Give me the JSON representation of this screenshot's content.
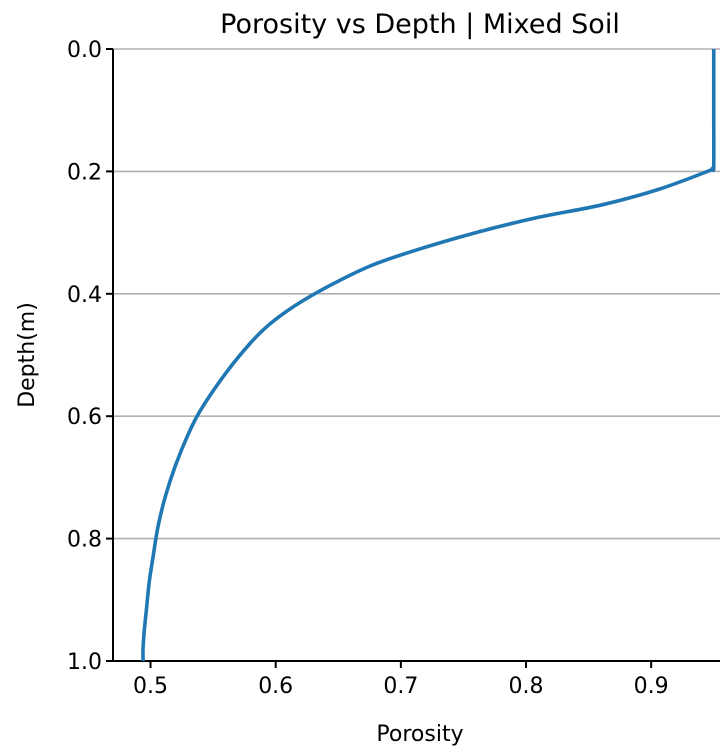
{
  "chart_data": {
    "type": "line",
    "title": "Porosity vs Depth | Mixed Soil",
    "xlabel": "Porosity",
    "ylabel": "Depth(m)",
    "xlim": [
      0.47,
      0.955
    ],
    "ylim": [
      1.0,
      0.0
    ],
    "y_inverted": true,
    "xticks": [
      0.5,
      0.6,
      0.7,
      0.8,
      0.9
    ],
    "xtick_labels": [
      "0.5",
      "0.6",
      "0.7",
      "0.8",
      "0.9"
    ],
    "yticks": [
      0.0,
      0.2,
      0.4,
      0.6,
      0.8,
      1.0
    ],
    "ytick_labels": [
      "0.0",
      "0.2",
      "0.4",
      "0.6",
      "0.8",
      "1.0"
    ],
    "grid": "horizontal",
    "series_color": "#1f77b4",
    "series": [
      {
        "x": [
          0.95,
          0.95,
          0.95,
          0.949,
          0.945,
          0.905,
          0.86,
          0.81,
          0.76,
          0.71,
          0.675,
          0.64,
          0.615,
          0.595,
          0.58,
          0.56,
          0.54,
          0.53,
          0.52,
          0.512,
          0.506,
          0.502,
          0.499,
          0.497,
          0.495,
          0.494,
          0.494
        ],
        "y": [
          0.0,
          0.1,
          0.19,
          0.195,
          0.2,
          0.23,
          0.255,
          0.275,
          0.3,
          0.33,
          0.355,
          0.39,
          0.42,
          0.45,
          0.48,
          0.53,
          0.59,
          0.63,
          0.68,
          0.73,
          0.78,
          0.83,
          0.87,
          0.91,
          0.95,
          0.98,
          1.0
        ]
      }
    ]
  }
}
